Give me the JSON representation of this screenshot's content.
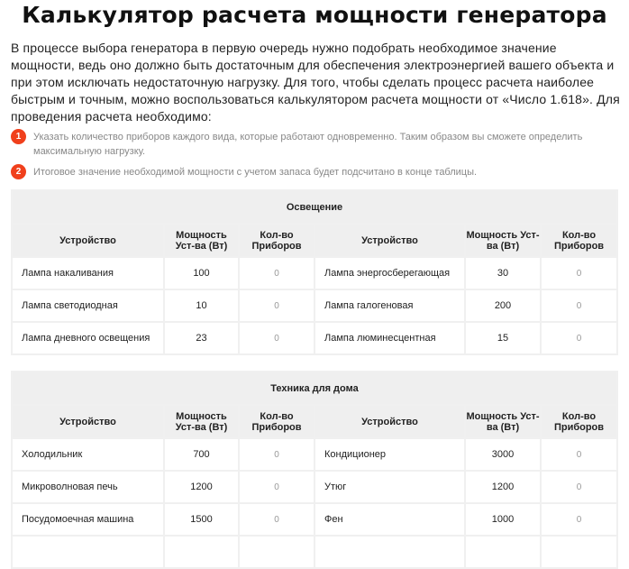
{
  "title": "Калькулятор расчета мощности генератора",
  "intro": "В процессе выбора генератора в первую очередь нужно подобрать необходимое значение мощности, ведь оно должно быть достаточным для обеспечения электроэнергией вашего объекта и при этом исключать недостаточную нагрузку. Для того, чтобы сделать процесс расчета наиболее быстрым и точным, можно воспользоваться калькулятором расчета мощности от «Число 1.618». Для проведения расчета необходимо:",
  "steps": [
    {
      "n": "1",
      "text": "Указать количество приборов каждого вида, которые работают одновременно. Таким образом вы сможете определить максимальную нагрузку."
    },
    {
      "n": "2",
      "text": "Итоговое значение необходимой мощности с учетом запаса будет подсчитано в конце таблицы."
    }
  ],
  "columns": {
    "device": "Устройство",
    "power": "Мощность Уст-ва (Вт)",
    "count": "Кол-во Приборов"
  },
  "tables": [
    {
      "caption": "Освещение",
      "rows": [
        [
          "Лампа накаливания",
          "100",
          "0",
          "Лампа энергосберегающая",
          "30",
          "0"
        ],
        [
          "Лампа светодиодная",
          "10",
          "0",
          "Лампа галогеновая",
          "200",
          "0"
        ],
        [
          "Лампа дневного освещения",
          "23",
          "0",
          "Лампа люминесцентная",
          "15",
          "0"
        ]
      ]
    },
    {
      "caption": "Техника для дома",
      "rows": [
        [
          "Холодильник",
          "700",
          "0",
          "Кондиционер",
          "3000",
          "0"
        ],
        [
          "Микроволновая печь",
          "1200",
          "0",
          "Утюг",
          "1200",
          "0"
        ],
        [
          "Посудомоечная машина",
          "1500",
          "0",
          "Фен",
          "1000",
          "0"
        ],
        [
          "",
          "",
          "",
          "",
          "",
          ""
        ]
      ]
    }
  ],
  "colors": {
    "accent": "#f0401c",
    "header_bg": "#efefef"
  }
}
